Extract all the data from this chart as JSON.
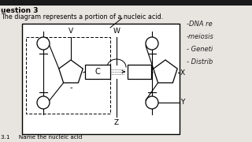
{
  "bg_color": "#e8e5e0",
  "top_bar_color": "#1a1a1a",
  "box_bg": "#ffffff",
  "title_text": "uestion 3",
  "subtitle_text": "The diagram represents a portion of a nucleic acid.",
  "notes": [
    "-DNA re",
    "-meiosis",
    "- Geneti",
    "- Distrib"
  ],
  "label_C": "C",
  "label_V": "V",
  "label_W": "W",
  "label_X": "X",
  "label_Y": "Y",
  "label_Z": "Z",
  "bottom_text": "3.1     Name the nucleic acid"
}
